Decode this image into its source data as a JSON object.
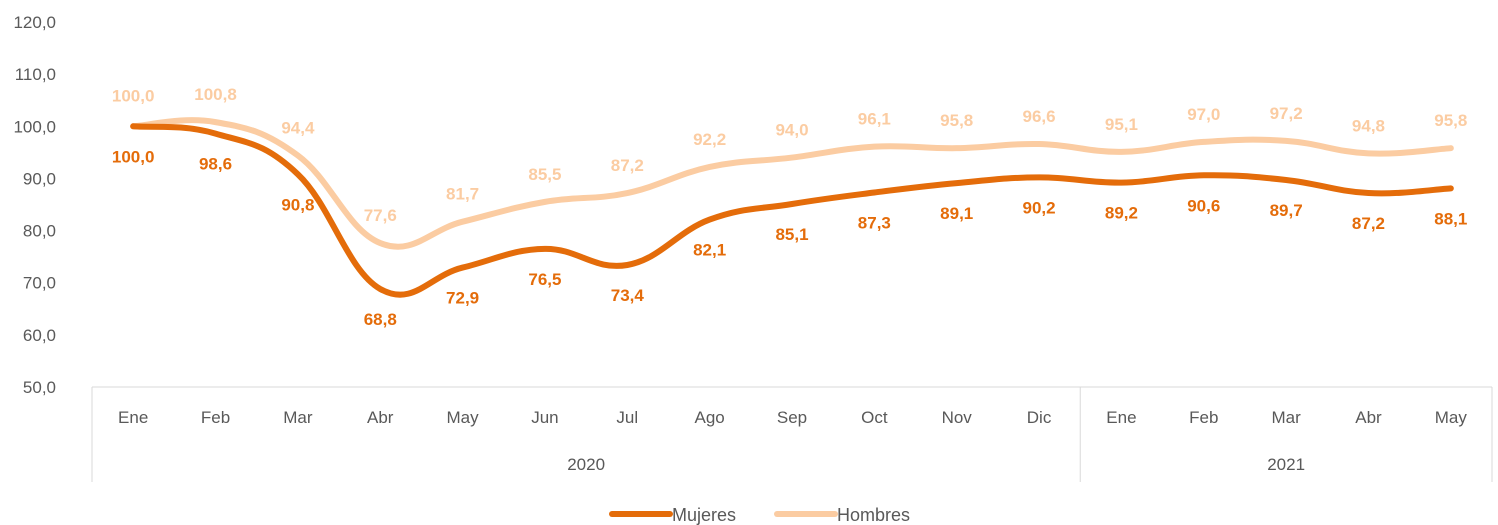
{
  "chart_data": {
    "type": "line",
    "categories": [
      "Ene",
      "Feb",
      "Mar",
      "Abr",
      "May",
      "Jun",
      "Jul",
      "Ago",
      "Sep",
      "Oct",
      "Nov",
      "Dic",
      "Ene",
      "Feb",
      "Mar",
      "Abr",
      "May"
    ],
    "groups": [
      {
        "label": "2020",
        "count": 12
      },
      {
        "label": "2021",
        "count": 5
      }
    ],
    "series": [
      {
        "name": "Mujeres",
        "color": "#e46c0a",
        "values": [
          100.0,
          98.6,
          90.8,
          68.8,
          72.9,
          76.5,
          73.4,
          82.1,
          85.1,
          87.3,
          89.1,
          90.2,
          89.2,
          90.6,
          89.7,
          87.2,
          88.1
        ],
        "labels": [
          "100,0",
          "98,6",
          "90,8",
          "68,8",
          "72,9",
          "76,5",
          "73,4",
          "82,1",
          "85,1",
          "87,3",
          "89,1",
          "90,2",
          "89,2",
          "90,6",
          "89,7",
          "87,2",
          "88,1"
        ]
      },
      {
        "name": "Hombres",
        "color": "#fbcca2",
        "values": [
          100.0,
          100.8,
          94.4,
          77.6,
          81.7,
          85.5,
          87.2,
          92.2,
          94.0,
          96.1,
          95.8,
          96.6,
          95.1,
          97.0,
          97.2,
          94.8,
          95.8
        ],
        "labels": [
          "100,0",
          "100,8",
          "94,4",
          "77,6",
          "81,7",
          "85,5",
          "87,2",
          "92,2",
          "94,0",
          "96,1",
          "95,8",
          "96,6",
          "95,1",
          "97,0",
          "97,2",
          "94,8",
          "95,8"
        ]
      }
    ],
    "ylim": [
      50,
      120
    ],
    "yticks": [
      "50,0",
      "60,0",
      "70,0",
      "80,0",
      "90,0",
      "100,0",
      "110,0",
      "120,0"
    ],
    "grid": false,
    "legend_position": "bottom-center"
  }
}
